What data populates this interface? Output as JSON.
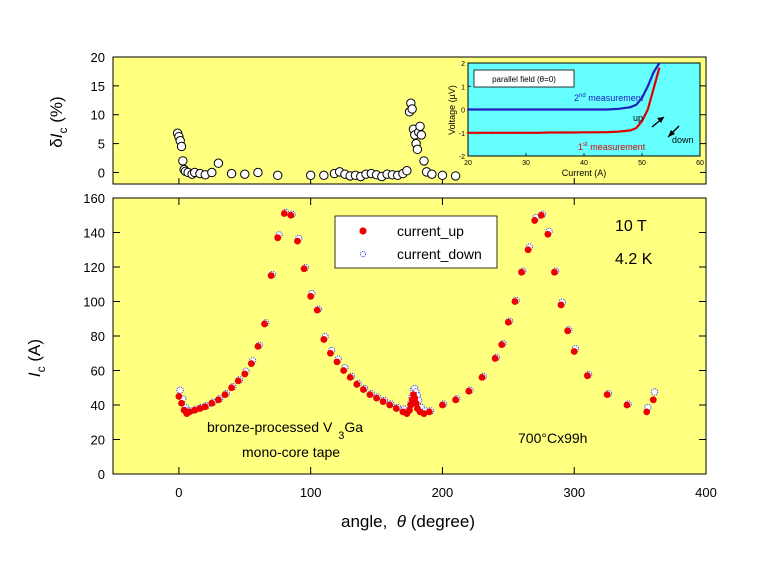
{
  "chart_data": [
    {
      "panel": "top",
      "type": "scatter",
      "ylabel": "δI_c (%)",
      "ylabel_parts": {
        "prefix": "δ",
        "symbol": "I",
        "subscript": "c",
        "unit": " (%)"
      },
      "xlim": [
        -50,
        400
      ],
      "ylim": [
        -2,
        20
      ],
      "yticks": [
        "0",
        "5",
        "10",
        "15",
        "20"
      ],
      "background": "#ffff80",
      "marker": "open-circle",
      "series": [
        {
          "values": [
            [
              -1,
              6.8
            ],
            [
              0,
              6.2
            ],
            [
              1,
              5.5
            ],
            [
              2,
              4.5
            ],
            [
              3,
              2.0
            ],
            [
              4,
              0.5
            ],
            [
              5,
              0.2
            ],
            [
              7,
              0.0
            ],
            [
              10,
              -0.3
            ],
            [
              12,
              0.0
            ],
            [
              16,
              -0.2
            ],
            [
              20,
              -0.4
            ],
            [
              25,
              0.0
            ],
            [
              30,
              1.6
            ],
            [
              40,
              -0.2
            ],
            [
              50,
              -0.3
            ],
            [
              60,
              0.0
            ],
            [
              75,
              -0.5
            ],
            [
              100,
              -0.5
            ],
            [
              110,
              -0.5
            ],
            [
              118,
              -0.2
            ],
            [
              122,
              0.1
            ],
            [
              126,
              -0.3
            ],
            [
              130,
              -0.6
            ],
            [
              134,
              -0.5
            ],
            [
              138,
              -0.7
            ],
            [
              142,
              -0.3
            ],
            [
              146,
              -0.2
            ],
            [
              150,
              -0.4
            ],
            [
              154,
              -0.7
            ],
            [
              158,
              -0.3
            ],
            [
              162,
              -0.4
            ],
            [
              166,
              -0.5
            ],
            [
              170,
              -0.2
            ],
            [
              173,
              0.3
            ],
            [
              175,
              10.5
            ],
            [
              176,
              12.0
            ],
            [
              177,
              11.0
            ],
            [
              178,
              7.5
            ],
            [
              179,
              6.5
            ],
            [
              180,
              5.0
            ],
            [
              181,
              4.0
            ],
            [
              182,
              7.0
            ],
            [
              183,
              8.0
            ],
            [
              184,
              6.5
            ],
            [
              186,
              2.0
            ],
            [
              188,
              0.1
            ],
            [
              192,
              -0.3
            ],
            [
              200,
              -0.5
            ],
            [
              210,
              -0.6
            ]
          ]
        }
      ]
    },
    {
      "panel": "inset",
      "type": "line",
      "xlabel": "Current (A)",
      "ylabel": "Voltage (µV)",
      "xlim": [
        20,
        60
      ],
      "ylim": [
        -2,
        2
      ],
      "xticks": [
        "20",
        "30",
        "40",
        "50",
        "60"
      ],
      "yticks": [
        "-2",
        "-1",
        "0",
        "1",
        "2"
      ],
      "background": "#66ffff",
      "annotations": {
        "legend_box": "parallel field (θ=0)",
        "second": {
          "base": "2",
          "sup": "nd",
          "rest": " measurement"
        },
        "first": {
          "base": "1",
          "sup": "st",
          "rest": " measurement"
        },
        "up": "up",
        "down": "down"
      },
      "series": [
        {
          "color": "#2020c0",
          "x": [
            20,
            22,
            24,
            26,
            28,
            30,
            32,
            34,
            36,
            38,
            40,
            42,
            44,
            46,
            48,
            49,
            50,
            51,
            52,
            53
          ],
          "y": [
            0.0,
            0.0,
            0.0,
            0.0,
            0.0,
            0.0,
            0.0,
            0.0,
            0.0,
            0.0,
            0.0,
            0.0,
            0.0,
            0.03,
            0.1,
            0.2,
            0.5,
            1.0,
            1.6,
            2.0
          ]
        },
        {
          "color": "#dd0000",
          "x": [
            20,
            22,
            24,
            26,
            28,
            30,
            32,
            34,
            36,
            38,
            40,
            42,
            44,
            46,
            48,
            49,
            50,
            51,
            52,
            53
          ],
          "y": [
            -1.0,
            -1.0,
            -1.0,
            -1.0,
            -1.0,
            -1.0,
            -1.0,
            -0.99,
            -0.99,
            -0.99,
            -0.98,
            -0.98,
            -0.97,
            -0.95,
            -0.9,
            -0.8,
            -0.5,
            0.0,
            0.9,
            1.8
          ]
        }
      ]
    },
    {
      "panel": "bottom",
      "type": "scatter",
      "xlabel_parts": {
        "prefix": "angle,  ",
        "symbol": "θ",
        "suffix": " (degree)"
      },
      "ylabel_parts": {
        "symbol": "I",
        "subscript": "c",
        "unit": " (A)"
      },
      "xlim": [
        -50,
        400
      ],
      "ylim": [
        0,
        160
      ],
      "xticks": [
        "0",
        "100",
        "200",
        "300",
        "400"
      ],
      "yticks": [
        "0",
        "20",
        "40",
        "60",
        "80",
        "100",
        "120",
        "140",
        "160"
      ],
      "background": "#ffff80",
      "annotations": {
        "field": "10 T",
        "temperature": "4.2 K",
        "sample_line1_a": "bronze-processed V",
        "sample_line1_sub": "3",
        "sample_line1_b": "Ga",
        "sample_line2": "mono-core tape",
        "heat_treatment": "700°Cx99h"
      },
      "series": [
        {
          "name": "current_up",
          "color": "#ee0000",
          "marker": "filled-circle",
          "values": [
            [
              0,
              45
            ],
            [
              2,
              41
            ],
            [
              4,
              37
            ],
            [
              6,
              35
            ],
            [
              8,
              36
            ],
            [
              12,
              37
            ],
            [
              16,
              38
            ],
            [
              20,
              39
            ],
            [
              25,
              41
            ],
            [
              30,
              43
            ],
            [
              35,
              46
            ],
            [
              40,
              50
            ],
            [
              45,
              54
            ],
            [
              50,
              58
            ],
            [
              55,
              64
            ],
            [
              60,
              74
            ],
            [
              65,
              87
            ],
            [
              70,
              115
            ],
            [
              75,
              137
            ],
            [
              80,
              151
            ],
            [
              85,
              150
            ],
            [
              90,
              135
            ],
            [
              95,
              119
            ],
            [
              100,
              103
            ],
            [
              105,
              95
            ],
            [
              110,
              78
            ],
            [
              115,
              70
            ],
            [
              120,
              65
            ],
            [
              125,
              60
            ],
            [
              130,
              56
            ],
            [
              135,
              52
            ],
            [
              140,
              49
            ],
            [
              145,
              46
            ],
            [
              150,
              44
            ],
            [
              155,
              42
            ],
            [
              160,
              40
            ],
            [
              165,
              38
            ],
            [
              170,
              36
            ],
            [
              173,
              35
            ],
            [
              175,
              37
            ],
            [
              176,
              40
            ],
            [
              177,
              43
            ],
            [
              178,
              46
            ],
            [
              179,
              44
            ],
            [
              180,
              41
            ],
            [
              181,
              38
            ],
            [
              183,
              36
            ],
            [
              186,
              35
            ],
            [
              190,
              36
            ],
            [
              200,
              40
            ],
            [
              210,
              43
            ],
            [
              220,
              48
            ],
            [
              230,
              56
            ],
            [
              240,
              67
            ],
            [
              245,
              75
            ],
            [
              250,
              88
            ],
            [
              255,
              100
            ],
            [
              260,
              117
            ],
            [
              265,
              130
            ],
            [
              270,
              147
            ],
            [
              275,
              150
            ],
            [
              280,
              139
            ],
            [
              285,
              117
            ],
            [
              290,
              98
            ],
            [
              295,
              83
            ],
            [
              300,
              71
            ],
            [
              310,
              57
            ],
            [
              325,
              46
            ],
            [
              340,
              40
            ],
            [
              355,
              36
            ],
            [
              360,
              43
            ]
          ]
        },
        {
          "name": "current_down",
          "color": "#3344ee",
          "marker": "dot",
          "values": [
            [
              0,
              48
            ],
            [
              2,
              43
            ],
            [
              4,
              38
            ],
            [
              6,
              36
            ],
            [
              8,
              36
            ],
            [
              12,
              37
            ],
            [
              16,
              38
            ],
            [
              20,
              39
            ],
            [
              25,
              41
            ],
            [
              30,
              43
            ],
            [
              35,
              46
            ],
            [
              40,
              50
            ],
            [
              45,
              54
            ],
            [
              50,
              59
            ],
            [
              55,
              65
            ],
            [
              60,
              74
            ],
            [
              65,
              87
            ],
            [
              70,
              115
            ],
            [
              75,
              138
            ],
            [
              80,
              151
            ],
            [
              85,
              150
            ],
            [
              90,
              136
            ],
            [
              95,
              119
            ],
            [
              100,
              104
            ],
            [
              105,
              95
            ],
            [
              110,
              79
            ],
            [
              115,
              71
            ],
            [
              120,
              66
            ],
            [
              125,
              61
            ],
            [
              130,
              56
            ],
            [
              135,
              52
            ],
            [
              140,
              49
            ],
            [
              145,
              46
            ],
            [
              150,
              44
            ],
            [
              155,
              42
            ],
            [
              160,
              40
            ],
            [
              165,
              38
            ],
            [
              170,
              37
            ],
            [
              173,
              36
            ],
            [
              175,
              40
            ],
            [
              176,
              44
            ],
            [
              177,
              48
            ],
            [
              178,
              49
            ],
            [
              179,
              47
            ],
            [
              180,
              45
            ],
            [
              181,
              42
            ],
            [
              183,
              38
            ],
            [
              186,
              36
            ],
            [
              190,
              36
            ],
            [
              200,
              40
            ],
            [
              210,
              43
            ],
            [
              220,
              48
            ],
            [
              230,
              56
            ],
            [
              240,
              67
            ],
            [
              245,
              75
            ],
            [
              250,
              88
            ],
            [
              255,
              100
            ],
            [
              260,
              117
            ],
            [
              265,
              131
            ],
            [
              270,
              148
            ],
            [
              275,
              150
            ],
            [
              280,
              140
            ],
            [
              285,
              117
            ],
            [
              290,
              99
            ],
            [
              295,
              83
            ],
            [
              300,
              72
            ],
            [
              310,
              57
            ],
            [
              325,
              46
            ],
            [
              340,
              40
            ],
            [
              355,
              38
            ],
            [
              360,
              47
            ]
          ]
        }
      ]
    }
  ]
}
